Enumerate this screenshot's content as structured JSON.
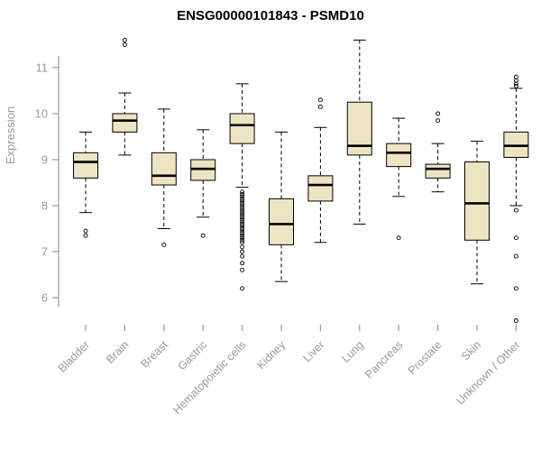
{
  "chart_data": {
    "type": "boxplot",
    "title": "ENSG00000101843 - PSMD10",
    "ylabel": "Expression",
    "xlabel": "",
    "ylim": [
      5.4,
      11.8
    ],
    "yticks": [
      6,
      7,
      8,
      9,
      10,
      11
    ],
    "grid": false,
    "legend": "none",
    "colors": {
      "box_fill": "#EDE4C4",
      "box_border": "#000000",
      "axis": "#999999",
      "title": "#000000"
    },
    "categories": [
      "Bladder",
      "Brain",
      "Breast",
      "Gastric",
      "Hematopoietic cells",
      "Kidney",
      "Liver",
      "Lung",
      "Pancreas",
      "Prostate",
      "Skin",
      "Unknown / Other"
    ],
    "boxes": [
      {
        "low": 7.85,
        "q1": 8.6,
        "median": 8.95,
        "q3": 9.15,
        "high": 9.6,
        "outliers": [
          7.35,
          7.45
        ]
      },
      {
        "low": 9.1,
        "q1": 9.6,
        "median": 9.85,
        "q3": 10.0,
        "high": 10.45,
        "outliers": [
          11.5,
          11.6
        ]
      },
      {
        "low": 7.5,
        "q1": 8.45,
        "median": 8.65,
        "q3": 9.15,
        "high": 10.1,
        "outliers": [
          7.15
        ]
      },
      {
        "low": 7.75,
        "q1": 8.55,
        "median": 8.8,
        "q3": 9.0,
        "high": 9.65,
        "outliers": [
          7.35
        ]
      },
      {
        "low": 8.4,
        "q1": 9.35,
        "median": 9.75,
        "q3": 10.0,
        "high": 10.65,
        "outliers": [
          8.3,
          8.25,
          8.2,
          8.15,
          8.1,
          8.05,
          8.0,
          7.95,
          7.9,
          7.85,
          7.8,
          7.75,
          7.7,
          7.65,
          7.6,
          7.55,
          7.5,
          7.45,
          7.4,
          7.35,
          7.3,
          7.25,
          7.2,
          7.1,
          7.0,
          6.9,
          6.75,
          6.6,
          6.2
        ]
      },
      {
        "low": 6.35,
        "q1": 7.15,
        "median": 7.6,
        "q3": 8.15,
        "high": 9.6,
        "outliers": []
      },
      {
        "low": 7.2,
        "q1": 8.1,
        "median": 8.45,
        "q3": 8.65,
        "high": 9.7,
        "outliers": [
          10.15,
          10.3
        ]
      },
      {
        "low": 7.6,
        "q1": 9.1,
        "median": 9.3,
        "q3": 10.25,
        "high": 11.6,
        "outliers": []
      },
      {
        "low": 8.2,
        "q1": 8.85,
        "median": 9.15,
        "q3": 9.35,
        "high": 9.9,
        "outliers": [
          7.3
        ]
      },
      {
        "low": 8.3,
        "q1": 8.6,
        "median": 8.8,
        "q3": 8.9,
        "high": 9.35,
        "outliers": [
          9.85,
          10.0
        ]
      },
      {
        "low": 6.3,
        "q1": 7.25,
        "median": 8.05,
        "q3": 8.95,
        "high": 9.4,
        "outliers": []
      },
      {
        "low": 8.0,
        "q1": 9.05,
        "median": 9.3,
        "q3": 9.6,
        "high": 10.55,
        "outliers": [
          10.6,
          10.65,
          10.72,
          10.8,
          7.9,
          7.3,
          6.9,
          6.2,
          5.5
        ]
      }
    ]
  }
}
